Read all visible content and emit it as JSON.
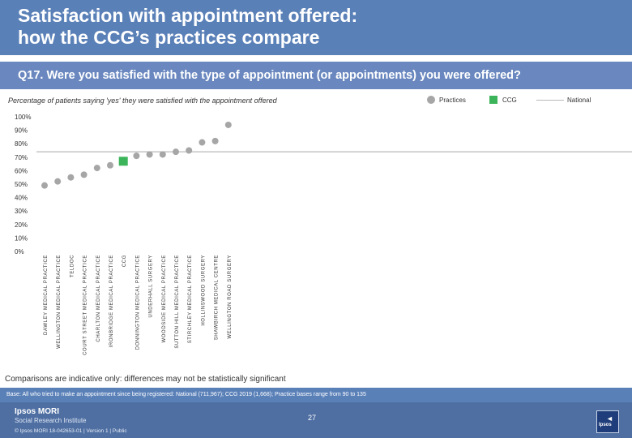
{
  "header": {
    "title_line1": "Satisfaction with appointment offered:",
    "title_line2": "how the CCG’s practices compare"
  },
  "question": "Q17. Were you satisfied with the type of appointment (or appointments) you were offered?",
  "subtitle": "Percentage of patients saying 'yes' they were satisfied with the appointment offered",
  "legend": {
    "practices": "Practices",
    "ccg": "CCG",
    "national": "National"
  },
  "colors": {
    "header_bg": "#5a80b8",
    "practice_marker": "#a6a6a6",
    "ccg_marker": "#3cb55a",
    "national_line": "#b8b8b8"
  },
  "chart_data": {
    "type": "scatter",
    "y_ticks": [
      "0%",
      "10%",
      "20%",
      "30%",
      "40%",
      "50%",
      "60%",
      "70%",
      "80%",
      "90%",
      "100%"
    ],
    "ylim": [
      0,
      100
    ],
    "national_value": 74,
    "categories": [
      "DAWLEY MEDICAL PRACTICE",
      "WELLINGTON MEDICAL PRACTICE",
      "TELDOC",
      "COURT STREET MEDICAL PRACTICE",
      "CHARLTON MEDICAL PRACTICE",
      "IRONBRIDGE MEDICAL PRACTICE",
      "CCG",
      "DONNINGTON MEDICAL PRACTICE",
      "UNDERHALL SURGERY",
      "WOODSIDE MEDICAL PRACTICE",
      "SUTTON HILL MEDICAL PRACTICE",
      "STIRCHLEY MEDICAL PRACTICE",
      "HOLLINSWOOD SURGERY",
      "SHAWBIRCH MEDICAL CENTRE",
      "WELLINGTON ROAD SURGERY"
    ],
    "values": [
      49,
      52,
      55,
      57,
      62,
      64,
      67,
      71,
      72,
      72,
      74,
      75,
      81,
      82,
      94
    ],
    "kinds": [
      "practice",
      "practice",
      "practice",
      "practice",
      "practice",
      "practice",
      "ccg",
      "practice",
      "practice",
      "practice",
      "practice",
      "practice",
      "practice",
      "practice",
      "practice"
    ]
  },
  "comparisons": "Comparisons are indicative only: differences may not be statistically significant",
  "base": "Base: All who tried to make an appointment since being registered: National (711,967); CCG 2019 (1,668); Practice bases range from 90 to 135",
  "footer": {
    "logo_line1": "Ipsos MORI",
    "logo_line2": "Social Research Institute",
    "copyright": "© Ipsos MORI      18-042653-01 | Version 1 | Public",
    "page_number": "27",
    "brand_word": "Ipsos"
  }
}
